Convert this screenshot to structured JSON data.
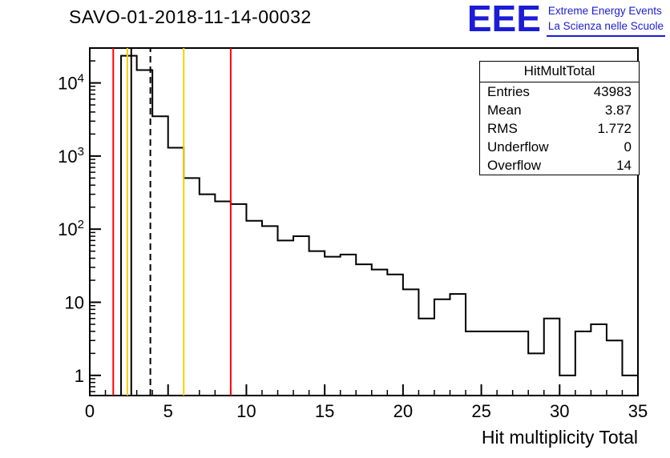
{
  "logo": {
    "letters": "EEE",
    "line1": "Extreme Energy Events",
    "line2": "La Scienza nelle Scuole",
    "color": "#1c1cd6"
  },
  "stats": {
    "title": "HitMultTotal",
    "rows": [
      {
        "label": "Entries",
        "value": "43983"
      },
      {
        "label": "Mean",
        "value": "3.87"
      },
      {
        "label": "RMS",
        "value": "1.772"
      },
      {
        "label": "Underflow",
        "value": "0"
      },
      {
        "label": "Overflow",
        "value": "14"
      }
    ]
  },
  "chart_data": {
    "type": "bar",
    "style": "step-outline-histogram",
    "title": "SAVO-01-2018-11-14-00032",
    "xlabel": "Hit multiplicity Total",
    "ylabel": "",
    "y_scale": "log",
    "x_range": [
      0,
      35
    ],
    "y_range": [
      0.53,
      30000
    ],
    "x_major_ticks": [
      0,
      5,
      10,
      15,
      20,
      25,
      30,
      35
    ],
    "y_major_ticks": [
      1,
      10,
      100,
      1000,
      10000
    ],
    "y_major_labels": [
      "1",
      "10",
      "10^2",
      "10^3",
      "10^4"
    ],
    "grid": false,
    "legend": false,
    "line_color": "#000000",
    "bin_start": 0,
    "bin_width": 1,
    "counts": [
      0,
      0,
      23500,
      15000,
      3500,
      1300,
      500,
      300,
      240,
      220,
      130,
      110,
      70,
      80,
      50,
      42,
      45,
      33,
      28,
      24,
      15,
      6,
      11,
      13,
      4,
      4,
      4,
      4,
      2,
      6,
      1,
      4,
      5,
      3,
      1
    ],
    "marker_lines": [
      {
        "x": 1.5,
        "color": "#ff0000",
        "style": "solid"
      },
      {
        "x": 2.4,
        "color": "#ffcc00",
        "style": "solid"
      },
      {
        "x": 2.65,
        "color": "#000000",
        "style": "solid"
      },
      {
        "x": 3.87,
        "color": "#000000",
        "style": "dashed"
      },
      {
        "x": 6,
        "color": "#ffcc00",
        "style": "solid"
      },
      {
        "x": 9,
        "color": "#ff0000",
        "style": "solid"
      }
    ]
  }
}
